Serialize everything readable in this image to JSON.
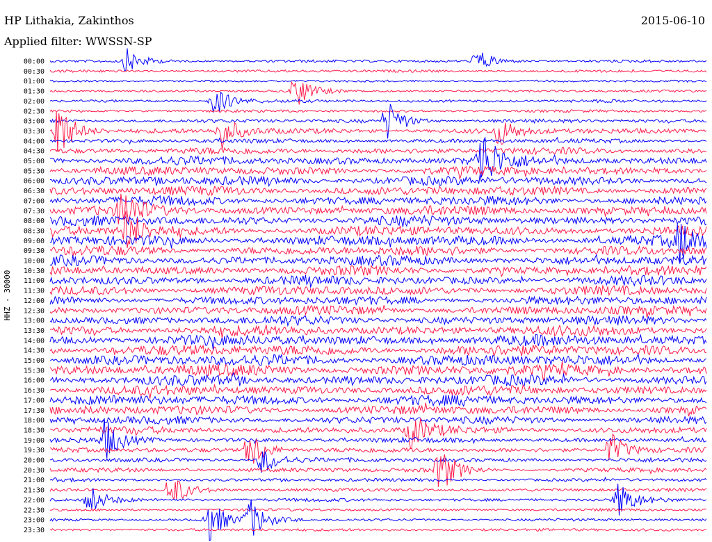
{
  "header": {
    "station": "HP Lithakia, Zakinthos",
    "date": "2015-06-10",
    "filter_prefix": "Applied filter:",
    "filter": "WWSSN-SP"
  },
  "chart_data": {
    "type": "line",
    "title": "HP Lithakia, Zakinthos",
    "ylabel": "HHZ - 30000",
    "row_labels": [
      "00:00",
      "00:30",
      "01:00",
      "01:30",
      "02:00",
      "02:30",
      "03:00",
      "03:30",
      "04:00",
      "04:30",
      "05:00",
      "05:30",
      "06:00",
      "06:30",
      "07:00",
      "07:30",
      "08:00",
      "08:30",
      "09:00",
      "09:30",
      "10:00",
      "10:30",
      "11:00",
      "11:30",
      "12:00",
      "12:30",
      "13:00",
      "13:30",
      "14:00",
      "14:30",
      "15:00",
      "15:30",
      "16:00",
      "16:30",
      "17:00",
      "17:30",
      "18:00",
      "18:30",
      "19:00",
      "19:30",
      "20:00",
      "20:30",
      "21:00",
      "21:30",
      "22:00",
      "22:30",
      "23:00",
      "23:30"
    ],
    "row_minutes": 30,
    "colors": [
      "#0000ff",
      "#ff1a4a"
    ],
    "activity_level": [
      0.15,
      0.15,
      0.1,
      0.12,
      0.18,
      0.15,
      0.25,
      0.4,
      0.3,
      0.5,
      0.7,
      0.7,
      0.75,
      0.75,
      0.75,
      0.8,
      0.8,
      0.8,
      0.85,
      0.8,
      0.8,
      0.75,
      0.75,
      0.75,
      0.7,
      0.75,
      0.75,
      0.85,
      0.9,
      0.95,
      0.95,
      0.95,
      0.85,
      0.8,
      0.85,
      0.75,
      0.6,
      0.55,
      0.35,
      0.35,
      0.3,
      0.3,
      0.2,
      0.2,
      0.2,
      0.15,
      0.15,
      0.15
    ],
    "events": [
      {
        "row": 0,
        "minute": 3.5,
        "amplitude": 8
      },
      {
        "row": 0,
        "minute": 19.5,
        "amplitude": 8
      },
      {
        "row": 3,
        "minute": 11.2,
        "amplitude": 12
      },
      {
        "row": 4,
        "minute": 7.5,
        "amplitude": 10
      },
      {
        "row": 6,
        "minute": 15.4,
        "amplitude": 14
      },
      {
        "row": 7,
        "minute": 0.3,
        "amplitude": 22
      },
      {
        "row": 7,
        "minute": 7.8,
        "amplitude": 12
      },
      {
        "row": 7,
        "minute": 20.5,
        "amplitude": 10
      },
      {
        "row": 10,
        "minute": 19.7,
        "amplitude": 22
      },
      {
        "row": 15,
        "minute": 3.3,
        "amplitude": 14
      },
      {
        "row": 17,
        "minute": 3.5,
        "amplitude": 14
      },
      {
        "row": 18,
        "minute": 28.8,
        "amplitude": 14
      },
      {
        "row": 37,
        "minute": 16.5,
        "amplitude": 12
      },
      {
        "row": 38,
        "minute": 2.5,
        "amplitude": 14
      },
      {
        "row": 39,
        "minute": 9.1,
        "amplitude": 14
      },
      {
        "row": 39,
        "minute": 25.6,
        "amplitude": 12
      },
      {
        "row": 40,
        "minute": 9.7,
        "amplitude": 10
      },
      {
        "row": 41,
        "minute": 17.8,
        "amplitude": 16
      },
      {
        "row": 43,
        "minute": 5.5,
        "amplitude": 12
      },
      {
        "row": 44,
        "minute": 1.8,
        "amplitude": 10
      },
      {
        "row": 44,
        "minute": 26.0,
        "amplitude": 12
      },
      {
        "row": 46,
        "minute": 7.2,
        "amplitude": 16
      },
      {
        "row": 46,
        "minute": 9.1,
        "amplitude": 14
      }
    ],
    "grid": false,
    "legend": "none"
  }
}
